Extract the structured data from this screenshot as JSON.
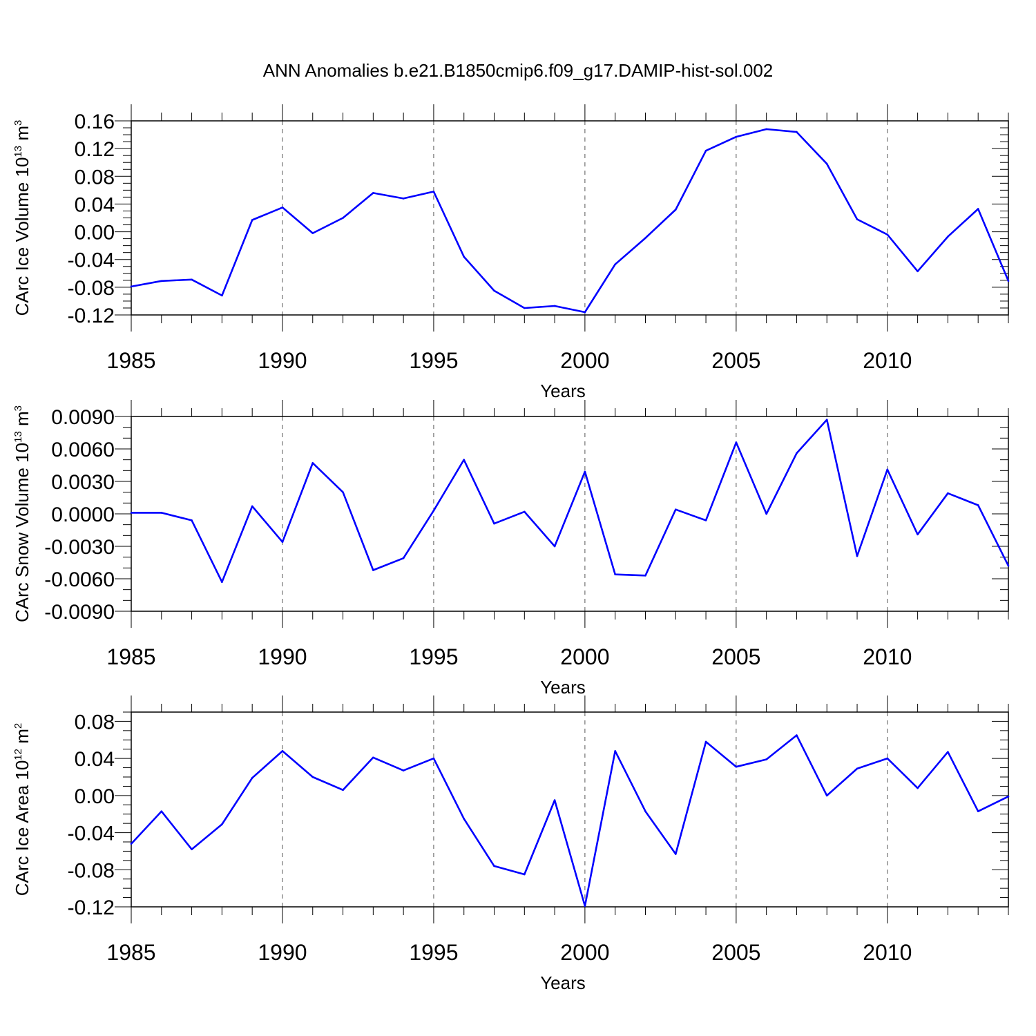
{
  "chart_data": {
    "type": "line",
    "title": "ANN Anomalies b.e21.B1850cmip6.f09_g17.DAMIP-hist-sol.002",
    "line_color": "#0000ff",
    "panels": [
      {
        "ylabel": {
          "main": "CArc Ice Volume 10",
          "sup": "13",
          "unit": " m",
          "unit_sup": "3"
        },
        "xlabel": "Years",
        "xlim": [
          1985,
          2014
        ],
        "ylim": [
          -0.12,
          0.16
        ],
        "yticks": [
          -0.12,
          -0.08,
          -0.04,
          0.0,
          0.04,
          0.08,
          0.12,
          0.16
        ],
        "ytick_labels": [
          "-0.12",
          "-0.08",
          "-0.04",
          "0.00",
          "0.04",
          "0.08",
          "0.12",
          "0.16"
        ],
        "ymin_step": 0.01,
        "ytick_decimals": 2,
        "xticks": [
          1985,
          1990,
          1995,
          2000,
          2005,
          2010
        ],
        "xtick_labels": [
          "1985",
          "1990",
          "1995",
          "2000",
          "2005",
          "2010"
        ],
        "x": [
          1985,
          1986,
          1987,
          1988,
          1989,
          1990,
          1991,
          1992,
          1993,
          1994,
          1995,
          1996,
          1997,
          1998,
          1999,
          2000,
          2001,
          2002,
          2003,
          2004,
          2005,
          2006,
          2007,
          2008,
          2009,
          2010,
          2011,
          2012,
          2013,
          2014
        ],
        "values": [
          -0.079,
          -0.071,
          -0.069,
          -0.092,
          0.017,
          0.035,
          -0.002,
          0.02,
          0.056,
          0.048,
          0.058,
          -0.036,
          -0.085,
          -0.11,
          -0.107,
          -0.116,
          -0.047,
          -0.009,
          0.032,
          0.117,
          0.137,
          0.148,
          0.144,
          0.098,
          0.018,
          -0.004,
          -0.057,
          -0.007,
          0.033,
          -0.071
        ]
      },
      {
        "ylabel": {
          "main": "CArc Snow Volume 10",
          "sup": "13",
          "unit": " m",
          "unit_sup": "3"
        },
        "xlabel": "Years",
        "xlim": [
          1985,
          2014
        ],
        "ylim": [
          -0.009,
          0.009
        ],
        "yticks": [
          -0.009,
          -0.006,
          -0.003,
          0.0,
          0.003,
          0.006,
          0.009
        ],
        "ytick_labels": [
          "-0.0090",
          "-0.0060",
          "-0.0030",
          "0.0000",
          "0.0030",
          "0.0060",
          "0.0090"
        ],
        "ymin_step": 0.001,
        "ytick_decimals": 4,
        "xticks": [
          1985,
          1990,
          1995,
          2000,
          2005,
          2010
        ],
        "xtick_labels": [
          "1985",
          "1990",
          "1995",
          "2000",
          "2005",
          "2010"
        ],
        "x": [
          1985,
          1986,
          1987,
          1988,
          1989,
          1990,
          1991,
          1992,
          1993,
          1994,
          1995,
          1996,
          1997,
          1998,
          1999,
          2000,
          2001,
          2002,
          2003,
          2004,
          2005,
          2006,
          2007,
          2008,
          2009,
          2010,
          2011,
          2012,
          2013,
          2014
        ],
        "values": [
          0.0001,
          0.0001,
          -0.0006,
          -0.0063,
          0.0007,
          -0.0026,
          0.0047,
          0.002,
          -0.0052,
          -0.0041,
          0.0003,
          0.005,
          -0.0009,
          0.0002,
          -0.003,
          0.0039,
          -0.0056,
          -0.0057,
          0.0004,
          -0.0006,
          0.0066,
          0.0,
          0.0056,
          0.0087,
          -0.0039,
          0.0041,
          -0.0019,
          0.0019,
          0.0008,
          -0.0048
        ]
      },
      {
        "ylabel": {
          "main": "CArc Ice Area 10",
          "sup": "12",
          "unit": " m",
          "unit_sup": "2"
        },
        "xlabel": "Years",
        "xlim": [
          1985,
          2014
        ],
        "ylim": [
          -0.12,
          0.09
        ],
        "yticks": [
          -0.12,
          -0.08,
          -0.04,
          0.0,
          0.04,
          0.08
        ],
        "ytick_labels": [
          "-0.12",
          "-0.08",
          "-0.04",
          "0.00",
          "0.04",
          "0.08"
        ],
        "ymin_step": 0.01,
        "ytick_decimals": 2,
        "xticks": [
          1985,
          1990,
          1995,
          2000,
          2005,
          2010
        ],
        "xtick_labels": [
          "1985",
          "1990",
          "1995",
          "2000",
          "2005",
          "2010"
        ],
        "x": [
          1985,
          1986,
          1987,
          1988,
          1989,
          1990,
          1991,
          1992,
          1993,
          1994,
          1995,
          1996,
          1997,
          1998,
          1999,
          2000,
          2001,
          2002,
          2003,
          2004,
          2005,
          2006,
          2007,
          2008,
          2009,
          2010,
          2011,
          2012,
          2013,
          2014
        ],
        "values": [
          -0.052,
          -0.017,
          -0.058,
          -0.031,
          0.019,
          0.048,
          0.02,
          0.006,
          0.041,
          0.027,
          0.04,
          -0.025,
          -0.076,
          -0.085,
          -0.005,
          -0.119,
          0.048,
          -0.017,
          -0.063,
          0.058,
          0.031,
          0.039,
          0.065,
          0.0,
          0.029,
          0.04,
          0.008,
          0.047,
          -0.017,
          -0.001
        ]
      }
    ]
  }
}
